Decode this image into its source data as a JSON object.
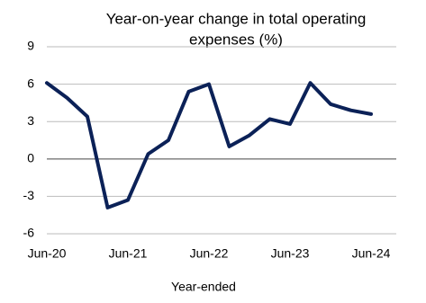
{
  "chart_data": {
    "type": "line",
    "title": [
      "Year-on-year change in total operating",
      "expenses (%)"
    ],
    "x_label": "Year-ended",
    "categories": [
      "Jun-20",
      null,
      null,
      null,
      "Jun-21",
      null,
      null,
      null,
      "Jun-22",
      null,
      null,
      null,
      "Jun-23",
      null,
      null,
      null,
      "Jun-24"
    ],
    "series": [
      {
        "name": "Total operating expenses",
        "color": "#0b2157",
        "values": [
          6.1,
          4.9,
          3.4,
          -3.9,
          -3.3,
          0.4,
          1.5,
          5.4,
          6.0,
          1.0,
          1.9,
          3.2,
          2.8,
          6.1,
          4.4,
          3.9,
          3.6
        ]
      }
    ],
    "ylim": [
      -6,
      9
    ],
    "yticks": [
      -6,
      -3,
      0,
      3,
      6,
      9
    ],
    "grid": true
  }
}
